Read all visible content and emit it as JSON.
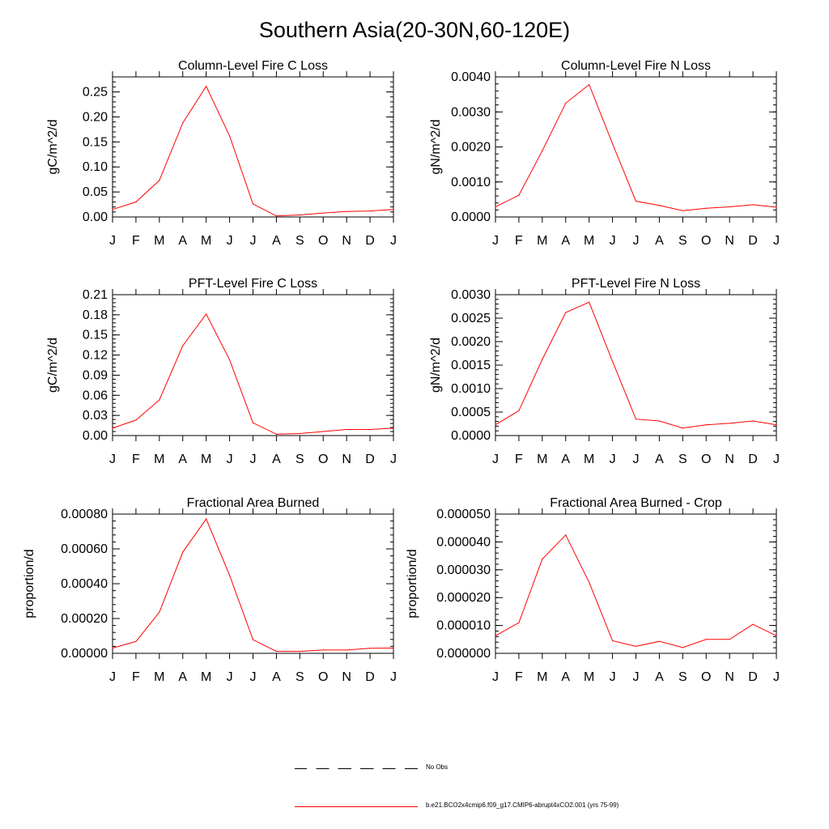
{
  "title": "Southern Asia(20-30N,60-120E)",
  "colors": {
    "model_line": "#ff0000",
    "axis": "#000000"
  },
  "months": [
    "J",
    "F",
    "M",
    "A",
    "M",
    "J",
    "J",
    "A",
    "S",
    "O",
    "N",
    "D",
    "J"
  ],
  "legend": [
    {
      "label": "No Obs",
      "style": "dashed",
      "color": "#000000"
    },
    {
      "label": "b.e21.BCO2x4cmip6.f09_g17.CMIP6-abrupt4xCO2.001 (yrs 75-99)",
      "style": "solid",
      "color": "#ff0000"
    }
  ],
  "chart_data": [
    {
      "type": "line",
      "title": "Column-Level Fire C Loss",
      "ylabel": "gC/m^2/d",
      "ylim": [
        0,
        0.28
      ],
      "yticks": [
        "0.00",
        "0.05",
        "0.10",
        "0.15",
        "0.20",
        "0.25"
      ],
      "ytick_values": [
        0,
        0.05,
        0.1,
        0.15,
        0.2,
        0.25
      ],
      "series": [
        {
          "name": "model",
          "values": [
            0.015,
            0.03,
            0.073,
            0.188,
            0.261,
            0.162,
            0.026,
            0.002,
            0.004,
            0.008,
            0.011,
            0.012,
            0.015
          ]
        }
      ]
    },
    {
      "type": "line",
      "title": "Column-Level Fire N Loss",
      "ylabel": "gN/m^2/d",
      "ylim": [
        0,
        0.004
      ],
      "yticks": [
        "0.0000",
        "0.0010",
        "0.0020",
        "0.0030",
        "0.0040"
      ],
      "ytick_values": [
        0,
        0.001,
        0.002,
        0.003,
        0.004
      ],
      "series": [
        {
          "name": "model",
          "values": [
            0.00029,
            0.00062,
            0.00189,
            0.00325,
            0.00378,
            0.00209,
            0.00045,
            0.00033,
            0.00018,
            0.00025,
            0.00029,
            0.00035,
            0.00028
          ]
        }
      ]
    },
    {
      "type": "line",
      "title": "PFT-Level Fire C Loss",
      "ylabel": "gC/m^2/d",
      "ylim": [
        0,
        0.21
      ],
      "yticks": [
        "0.00",
        "0.03",
        "0.06",
        "0.09",
        "0.12",
        "0.15",
        "0.18",
        "0.21"
      ],
      "ytick_values": [
        0,
        0.03,
        0.06,
        0.09,
        0.12,
        0.15,
        0.18,
        0.21
      ],
      "series": [
        {
          "name": "model",
          "values": [
            0.011,
            0.023,
            0.053,
            0.134,
            0.181,
            0.113,
            0.019,
            0.002,
            0.003,
            0.006,
            0.009,
            0.009,
            0.011
          ]
        }
      ]
    },
    {
      "type": "line",
      "title": "PFT-Level Fire N Loss",
      "ylabel": "gN/m^2/d",
      "ylim": [
        0,
        0.003
      ],
      "yticks": [
        "0.0000",
        "0.0005",
        "0.0010",
        "0.0015",
        "0.0020",
        "0.0025",
        "0.0030"
      ],
      "ytick_values": [
        0,
        0.0005,
        0.001,
        0.0015,
        0.002,
        0.0025,
        0.003
      ],
      "series": [
        {
          "name": "model",
          "values": [
            0.00023,
            0.00053,
            0.00162,
            0.00262,
            0.00284,
            0.00158,
            0.00035,
            0.00031,
            0.00016,
            0.00023,
            0.00026,
            0.00031,
            0.00023
          ]
        }
      ]
    },
    {
      "type": "line",
      "title": "Fractional Area Burned",
      "ylabel": "proportion/d",
      "ylim": [
        0,
        0.0008
      ],
      "yticks": [
        "0.00000",
        "0.00020",
        "0.00040",
        "0.00060",
        "0.00080"
      ],
      "ytick_values": [
        0,
        0.0002,
        0.0004,
        0.0006,
        0.0008
      ],
      "series": [
        {
          "name": "model",
          "values": [
            3e-05,
            6.8e-05,
            0.000236,
            0.000582,
            0.000772,
            0.000448,
            7.8e-05,
            1.1e-05,
            1.1e-05,
            1.9e-05,
            1.9e-05,
            2.9e-05,
            3e-05
          ]
        }
      ]
    },
    {
      "type": "line",
      "title": "Fractional Area Burned - Crop",
      "ylabel": "proportion/d",
      "ylim": [
        0,
        5e-05
      ],
      "yticks": [
        "0.000000",
        "0.000010",
        "0.000020",
        "0.000030",
        "0.000040",
        "0.000050"
      ],
      "ytick_values": [
        0,
        1e-05,
        2e-05,
        3e-05,
        4e-05,
        5e-05
      ],
      "series": [
        {
          "name": "model",
          "values": [
            6.3e-06,
            1.1e-05,
            3.38e-05,
            4.25e-05,
            2.55e-05,
            4.5e-06,
            2.5e-06,
            4.3e-06,
            2.1e-06,
            5e-06,
            5e-06,
            1.04e-05,
            6.3e-06
          ]
        }
      ]
    }
  ]
}
